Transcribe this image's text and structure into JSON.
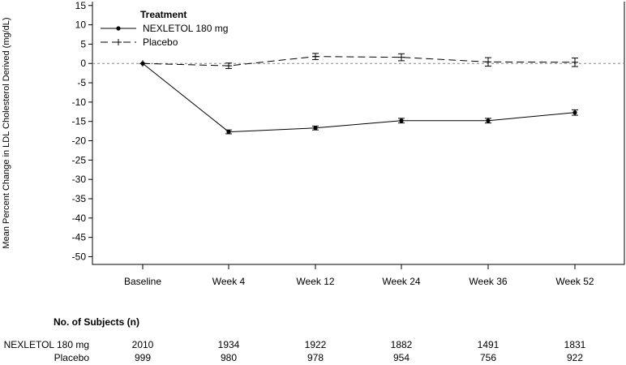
{
  "chart_data": {
    "type": "line",
    "ylabel": "Mean Percent Change in LDL Cholesterol Derived (mg/dL)",
    "xlabel": "",
    "categories": [
      "Baseline",
      "Week 4",
      "Week 12",
      "Week 24",
      "Week 36",
      "Week 52"
    ],
    "ylim": [
      -52,
      16
    ],
    "yticks": [
      15,
      10,
      5,
      0,
      -5,
      -10,
      -15,
      -20,
      -25,
      -30,
      -35,
      -40,
      -45,
      -50
    ],
    "reference_line_y": 0,
    "legend": {
      "title": "Treatment",
      "position": "top-left"
    },
    "series": [
      {
        "name": "NEXLETOL 180 mg",
        "values": [
          0,
          -17.7,
          -16.7,
          -14.8,
          -14.8,
          -12.7
        ],
        "error": [
          0,
          0.5,
          0.5,
          0.6,
          0.6,
          0.7
        ],
        "color": "#000000",
        "style": "solid",
        "marker": "circle"
      },
      {
        "name": "Placebo",
        "values": [
          0,
          -0.6,
          1.8,
          1.6,
          0.4,
          0.3
        ],
        "error": [
          0,
          0.7,
          0.8,
          0.9,
          1.1,
          1.1
        ],
        "color": "#000000",
        "style": "dashed",
        "marker": "plus"
      }
    ]
  },
  "subjects": {
    "title": "No. of Subjects (n)",
    "rows": [
      {
        "label": "NEXLETOL 180 mg",
        "values": [
          "2010",
          "1934",
          "1922",
          "1882",
          "1491",
          "1831"
        ]
      },
      {
        "label": "Placebo",
        "values": [
          "999",
          "980",
          "978",
          "954",
          "756",
          "922"
        ]
      }
    ]
  }
}
